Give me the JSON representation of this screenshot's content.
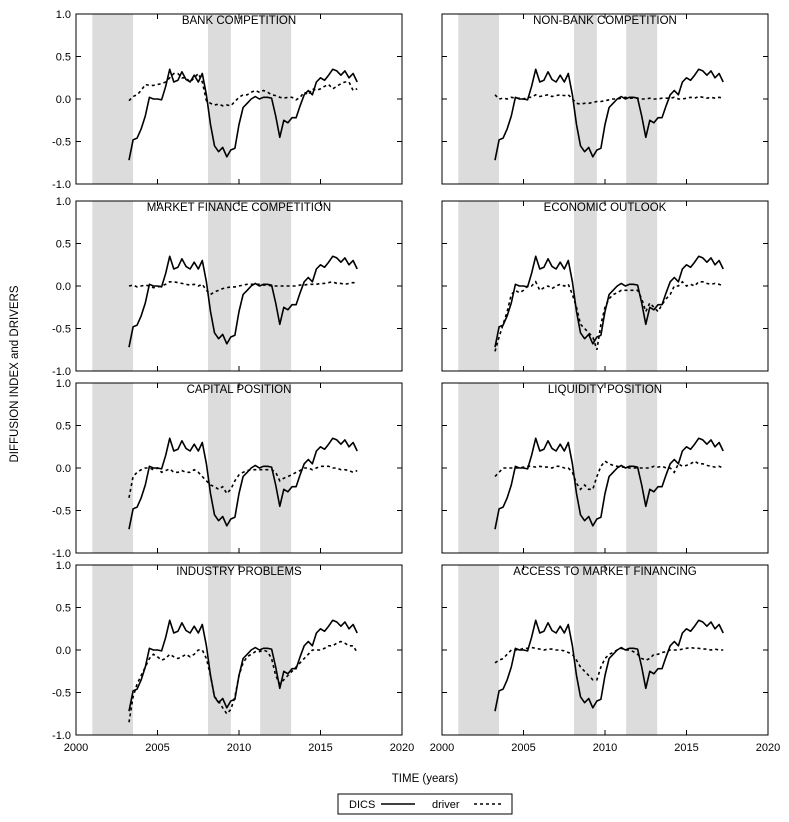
{
  "chart_data": {
    "type": "line",
    "ylabel": "DIFFUSION INDEX and DRIVERS",
    "xlabel": "TIME (years)",
    "xlim": [
      2000,
      2020
    ],
    "ylim": [
      -1.0,
      1.0
    ],
    "xticks": [
      "2000",
      "2005",
      "2010",
      "2015",
      "2020"
    ],
    "yticks": [
      "1.0",
      "0.5",
      "0.0",
      "-0.5",
      "-1.0"
    ],
    "grid": false,
    "legend": {
      "placement": "bottom-center",
      "entries": [
        "DICS",
        "driver"
      ]
    },
    "shaded_periods": [
      [
        2001.0,
        2003.5
      ],
      [
        2008.1,
        2009.5
      ],
      [
        2011.3,
        2013.2
      ]
    ],
    "dics": {
      "x": [
        2003.25,
        2003.5,
        2003.75,
        2004.0,
        2004.25,
        2004.5,
        2004.75,
        2005.0,
        2005.25,
        2005.5,
        2005.75,
        2006.0,
        2006.25,
        2006.5,
        2006.75,
        2007.0,
        2007.25,
        2007.5,
        2007.75,
        2008.0,
        2008.25,
        2008.5,
        2008.75,
        2009.0,
        2009.25,
        2009.5,
        2009.75,
        2010.0,
        2010.25,
        2010.5,
        2010.75,
        2011.0,
        2011.25,
        2011.5,
        2011.75,
        2012.0,
        2012.25,
        2012.5,
        2012.75,
        2013.0,
        2013.25,
        2013.5,
        2013.75,
        2014.0,
        2014.25,
        2014.5,
        2014.75,
        2015.0,
        2015.25,
        2015.5,
        2015.75,
        2016.0,
        2016.25,
        2016.5,
        2016.75,
        2017.0,
        2017.25
      ],
      "y": [
        -0.72,
        -0.48,
        -0.46,
        -0.35,
        -0.2,
        0.02,
        0.0,
        0.0,
        -0.01,
        0.15,
        0.35,
        0.2,
        0.22,
        0.32,
        0.23,
        0.2,
        0.28,
        0.2,
        0.3,
        0.05,
        -0.3,
        -0.55,
        -0.62,
        -0.57,
        -0.68,
        -0.6,
        -0.58,
        -0.3,
        -0.1,
        -0.05,
        0.0,
        0.03,
        0.0,
        0.02,
        0.02,
        0.01,
        -0.2,
        -0.45,
        -0.25,
        -0.28,
        -0.22,
        -0.22,
        -0.08,
        0.05,
        0.1,
        0.05,
        0.2,
        0.25,
        0.22,
        0.28,
        0.35,
        0.33,
        0.28,
        0.33,
        0.25,
        0.3,
        0.2
      ]
    },
    "panels": [
      {
        "title": "BANK COMPETITION",
        "driver": [
          -0.02,
          0.03,
          0.05,
          0.1,
          0.17,
          0.16,
          0.16,
          0.17,
          0.18,
          0.2,
          0.25,
          0.3,
          0.3,
          0.25,
          0.25,
          0.2,
          0.25,
          0.3,
          0.2,
          -0.02,
          -0.05,
          -0.07,
          -0.06,
          -0.08,
          -0.07,
          -0.08,
          -0.03,
          0.02,
          0.05,
          0.05,
          0.08,
          0.1,
          0.08,
          0.1,
          0.08,
          0.05,
          0.04,
          0.02,
          0.01,
          0.02,
          0.02,
          -0.01,
          0.02,
          0.08,
          0.05,
          0.12,
          0.1,
          0.12,
          0.15,
          0.17,
          0.12,
          0.15,
          0.18,
          0.2,
          0.2,
          0.1,
          0.12
        ]
      },
      {
        "title": "NON-BANK COMPETITION",
        "driver": [
          0.05,
          0.0,
          0.01,
          0.0,
          0.02,
          0.01,
          0.01,
          0.0,
          0.02,
          0.02,
          0.05,
          0.03,
          0.04,
          0.05,
          0.03,
          0.04,
          0.05,
          0.04,
          0.05,
          0.0,
          -0.05,
          -0.06,
          -0.05,
          -0.05,
          -0.04,
          -0.03,
          -0.03,
          -0.02,
          -0.01,
          0.0,
          0.0,
          0.01,
          0.02,
          0.01,
          0.01,
          0.01,
          0.0,
          0.0,
          0.01,
          0.0,
          0.0,
          0.01,
          0.01,
          0.01,
          0.02,
          0.0,
          0.0,
          0.01,
          0.02,
          0.01,
          0.03,
          0.02,
          0.01,
          0.02,
          0.01,
          0.02,
          0.01
        ]
      },
      {
        "title": "MARKET FINANCE COMPETITION",
        "driver": [
          0.0,
          0.01,
          -0.01,
          0.0,
          0.01,
          0.0,
          -0.02,
          -0.01,
          0.0,
          0.02,
          0.05,
          0.05,
          0.04,
          0.03,
          0.02,
          0.01,
          0.02,
          0.0,
          0.02,
          -0.05,
          -0.1,
          -0.07,
          -0.05,
          -0.03,
          -0.02,
          -0.01,
          -0.01,
          0.0,
          0.01,
          0.02,
          0.02,
          0.02,
          0.02,
          0.01,
          0.01,
          0.0,
          0.0,
          0.0,
          0.0,
          0.0,
          0.0,
          0.0,
          0.01,
          0.01,
          0.02,
          0.02,
          0.02,
          0.03,
          0.03,
          0.04,
          0.05,
          0.03,
          0.03,
          0.02,
          0.03,
          0.04,
          0.03
        ]
      },
      {
        "title": "ECONOMIC OUTLOOK",
        "driver": [
          -0.77,
          -0.6,
          -0.45,
          -0.3,
          -0.1,
          -0.05,
          -0.08,
          -0.05,
          0.0,
          0.0,
          0.05,
          -0.05,
          -0.02,
          0.0,
          -0.03,
          0.0,
          0.02,
          0.0,
          0.02,
          -0.1,
          -0.25,
          -0.45,
          -0.5,
          -0.55,
          -0.6,
          -0.75,
          -0.45,
          -0.25,
          -0.15,
          -0.1,
          -0.08,
          -0.05,
          -0.05,
          -0.05,
          -0.05,
          -0.05,
          -0.15,
          -0.3,
          -0.2,
          -0.25,
          -0.3,
          -0.22,
          -0.15,
          -0.1,
          0.0,
          0.0,
          0.05,
          0.0,
          0.02,
          0.0,
          0.05,
          0.05,
          0.03,
          0.02,
          0.03,
          0.02,
          0.0
        ]
      },
      {
        "title": "CAPITAL POSITION",
        "driver": [
          -0.35,
          -0.1,
          -0.05,
          -0.02,
          0.0,
          0.0,
          -0.02,
          0.0,
          -0.05,
          -0.03,
          -0.01,
          -0.05,
          -0.05,
          -0.03,
          -0.05,
          -0.05,
          -0.02,
          -0.05,
          -0.1,
          -0.15,
          -0.2,
          -0.22,
          -0.25,
          -0.22,
          -0.3,
          -0.25,
          -0.15,
          -0.08,
          -0.05,
          -0.03,
          -0.02,
          -0.02,
          -0.02,
          -0.02,
          -0.02,
          -0.02,
          -0.05,
          -0.15,
          -0.12,
          -0.1,
          -0.08,
          -0.05,
          -0.03,
          0.0,
          0.0,
          -0.02,
          0.0,
          0.02,
          0.02,
          0.02,
          0.0,
          0.0,
          -0.02,
          -0.02,
          -0.03,
          -0.05,
          -0.03
        ]
      },
      {
        "title": "LIQUIDITY POSITION",
        "driver": [
          -0.1,
          -0.05,
          0.0,
          0.0,
          0.0,
          0.0,
          0.0,
          0.01,
          0.02,
          0.02,
          0.01,
          0.02,
          0.01,
          0.01,
          0.0,
          0.02,
          0.02,
          0.0,
          0.0,
          -0.05,
          -0.18,
          -0.25,
          -0.2,
          -0.25,
          -0.25,
          -0.1,
          0.02,
          0.08,
          0.05,
          0.03,
          0.02,
          0.01,
          0.01,
          0.0,
          0.0,
          0.0,
          0.0,
          0.0,
          0.0,
          0.02,
          0.01,
          0.02,
          0.0,
          0.0,
          -0.05,
          0.05,
          0.02,
          0.03,
          0.05,
          0.08,
          0.05,
          0.05,
          0.03,
          0.02,
          0.01,
          0.02,
          0.0
        ]
      },
      {
        "title": "INDUSTRY PROBLEMS",
        "driver": [
          -0.85,
          -0.55,
          -0.4,
          -0.3,
          -0.2,
          -0.1,
          -0.05,
          -0.08,
          -0.12,
          -0.1,
          -0.05,
          -0.08,
          -0.1,
          -0.08,
          -0.05,
          -0.08,
          -0.05,
          0.0,
          0.0,
          -0.1,
          -0.3,
          -0.55,
          -0.6,
          -0.68,
          -0.75,
          -0.7,
          -0.55,
          -0.3,
          -0.15,
          -0.08,
          -0.05,
          -0.02,
          -0.02,
          0.0,
          -0.02,
          -0.1,
          -0.3,
          -0.4,
          -0.35,
          -0.3,
          -0.25,
          -0.2,
          -0.15,
          -0.1,
          -0.05,
          0.0,
          0.0,
          0.0,
          0.02,
          0.05,
          0.05,
          0.08,
          0.1,
          0.08,
          0.05,
          0.05,
          -0.03
        ]
      },
      {
        "title": "ACCESS TO MARKET FINANCING",
        "driver": [
          -0.15,
          -0.12,
          -0.1,
          -0.05,
          0.0,
          0.0,
          0.0,
          0.02,
          0.02,
          0.03,
          0.02,
          0.01,
          0.0,
          0.01,
          0.01,
          0.0,
          0.0,
          -0.01,
          -0.03,
          -0.05,
          -0.12,
          -0.2,
          -0.25,
          -0.3,
          -0.35,
          -0.35,
          -0.2,
          -0.1,
          -0.05,
          -0.03,
          0.0,
          0.02,
          0.0,
          0.0,
          -0.02,
          -0.05,
          -0.1,
          -0.12,
          -0.1,
          -0.05,
          -0.05,
          -0.03,
          -0.02,
          0.0,
          0.0,
          0.0,
          0.01,
          0.02,
          0.03,
          0.02,
          0.02,
          0.01,
          0.01,
          0.0,
          0.01,
          0.0,
          0.0
        ]
      }
    ]
  }
}
